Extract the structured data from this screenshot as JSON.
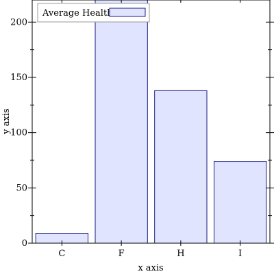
{
  "chart_data": {
    "type": "bar",
    "categories": [
      "C",
      "F",
      "H",
      "I"
    ],
    "series": [
      {
        "name": "Average Health",
        "values": [
          9,
          228,
          138,
          74
        ]
      }
    ],
    "xlabel": "x axis",
    "ylabel": "y axis",
    "ylim": [
      0,
      220
    ],
    "yticks": [
      0,
      50,
      100,
      150,
      200
    ],
    "grid": false,
    "legend_position": "top-left",
    "colors": {
      "bar_fill": "#e0e4ff",
      "bar_stroke": "#1a1a80",
      "axis": "#000000"
    }
  }
}
